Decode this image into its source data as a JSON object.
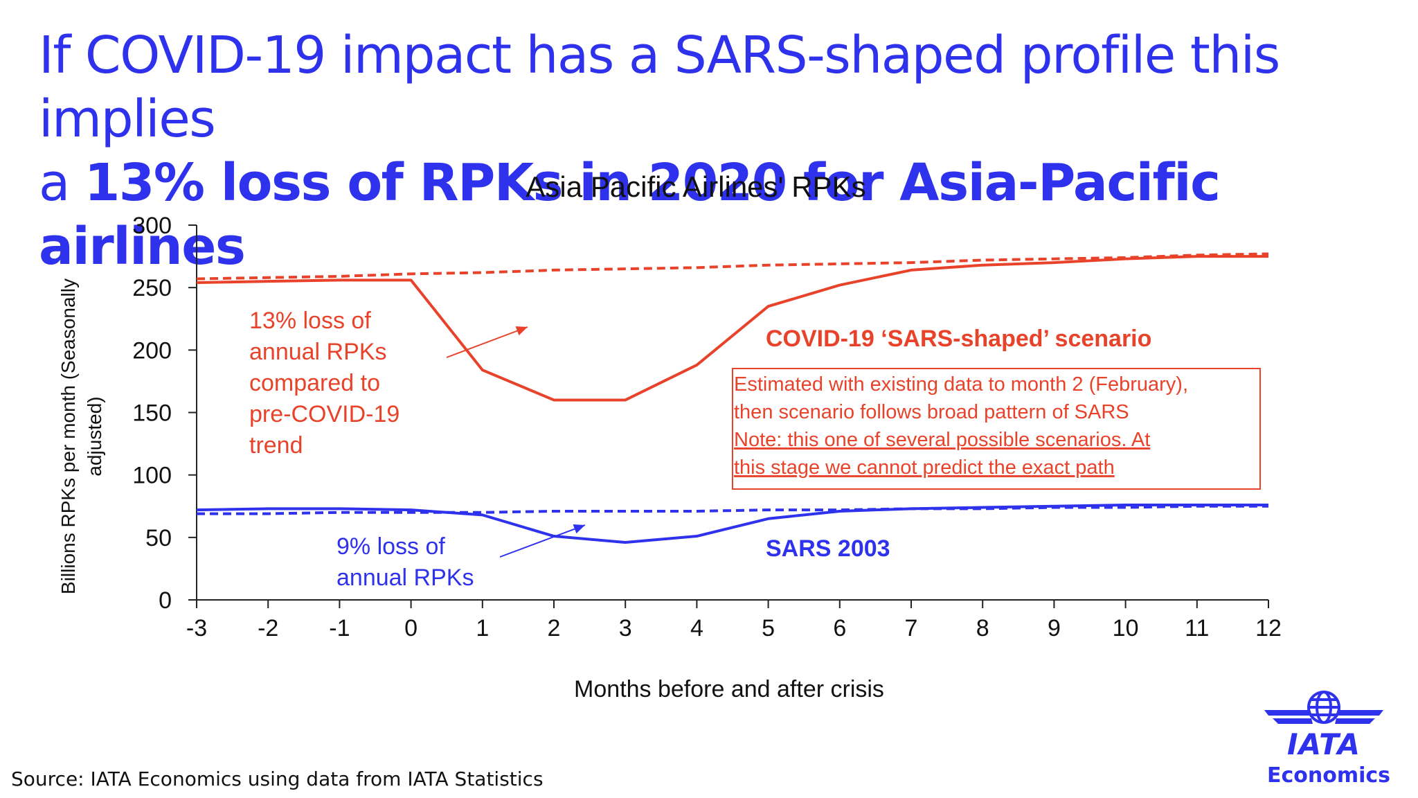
{
  "headline": {
    "line1": "If COVID-19 impact has a SARS-shaped profile this implies",
    "line2_plain": "a ",
    "line2_bold": "13% loss of RPKs in 2020 for Asia-Pacific airlines"
  },
  "chart_data": {
    "type": "line",
    "title": "Asia Pacific Airlines' RPKs",
    "xlabel": "Months before and after crisis",
    "ylabel": "Billions RPKs per month (Seasonally adjusted)",
    "ylim": [
      0,
      300
    ],
    "y_ticks": [
      0,
      50,
      100,
      150,
      200,
      250,
      300
    ],
    "x": [
      -3,
      -2,
      -1,
      0,
      1,
      2,
      3,
      4,
      5,
      6,
      7,
      8,
      9,
      10,
      11,
      12
    ],
    "series": [
      {
        "name": "COVID-19 'SARS-shaped' scenario",
        "style": "solid",
        "color": "#e8432a",
        "values": [
          254,
          255,
          256,
          256,
          184,
          160,
          160,
          188,
          235,
          252,
          264,
          268,
          270,
          273,
          275,
          275
        ]
      },
      {
        "style": "dashed",
        "color": "#e8432a",
        "values": [
          257,
          258,
          259,
          261,
          262,
          264,
          265,
          266,
          268,
          269,
          270,
          272,
          273,
          274,
          276,
          277
        ]
      },
      {
        "name": "SARS 2003",
        "style": "solid",
        "color": "#2f32ec",
        "values": [
          72,
          73,
          73,
          72,
          68,
          51,
          46,
          51,
          65,
          71,
          73,
          74,
          75,
          76,
          76,
          76
        ]
      },
      {
        "style": "dashed",
        "color": "#2f32ec",
        "values": [
          69,
          69,
          70,
          70,
          70,
          71,
          71,
          71,
          72,
          72,
          73,
          73,
          74,
          74,
          75,
          75
        ]
      }
    ],
    "annotations": {
      "covid_loss": [
        "13% loss of",
        "annual RPKs",
        "compared to",
        "pre-COVID-19",
        "trend"
      ],
      "sars_loss": [
        "9% loss of",
        "annual RPKs"
      ],
      "covid_label": "COVID-19 ‘SARS-shaped’ scenario",
      "sars_label": "SARS 2003",
      "note_box": [
        "Estimated with existing data to month 2 (February),",
        "then scenario follows broad pattern of SARS",
        "Note: this one of several possible scenarios. At",
        "this stage we cannot predict the exact path"
      ]
    }
  },
  "source": "Source: IATA Economics using data from IATA Statistics",
  "logo": {
    "name": "iata-globe-logo",
    "text": "IATA",
    "subtext": "Economics"
  },
  "colors": {
    "brand_blue": "#2f32ec",
    "covid_red": "#e8432a"
  }
}
